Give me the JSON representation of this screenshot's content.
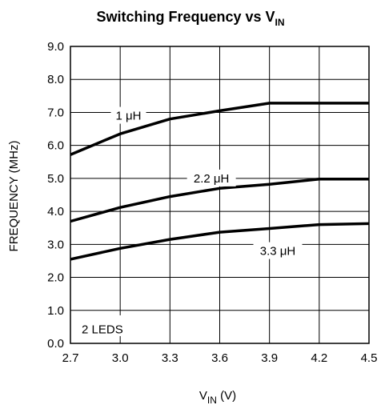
{
  "chart_data": {
    "type": "line",
    "title": {
      "main": "Switching Frequency vs V",
      "sub": "IN"
    },
    "xlabel": {
      "main": "V",
      "sub": "IN",
      "unit": " (V)"
    },
    "ylabel": "FREQUENCY (MHz)",
    "xlim": [
      2.7,
      4.5
    ],
    "ylim": [
      0.0,
      9.0
    ],
    "x_ticks": [
      "2.7",
      "3.0",
      "3.3",
      "3.6",
      "3.9",
      "4.2",
      "4.5"
    ],
    "y_ticks": [
      "0.0",
      "1.0",
      "2.0",
      "3.0",
      "4.0",
      "5.0",
      "6.0",
      "7.0",
      "8.0",
      "9.0"
    ],
    "grid": true,
    "annotation": "2 LEDS",
    "series": [
      {
        "name": "1 μH",
        "x": [
          2.7,
          3.0,
          3.3,
          3.6,
          3.9,
          4.2,
          4.5
        ],
        "y": [
          5.72,
          6.35,
          6.8,
          7.05,
          7.28,
          7.28,
          7.28
        ]
      },
      {
        "name": "2.2 μH",
        "x": [
          2.7,
          3.0,
          3.3,
          3.6,
          3.9,
          4.2,
          4.5
        ],
        "y": [
          3.7,
          4.12,
          4.45,
          4.7,
          4.82,
          4.98,
          4.98
        ]
      },
      {
        "name": "3.3 μH",
        "x": [
          2.7,
          3.0,
          3.3,
          3.6,
          3.9,
          4.2,
          4.5
        ],
        "y": [
          2.55,
          2.88,
          3.15,
          3.37,
          3.48,
          3.6,
          3.63
        ]
      }
    ],
    "colors": {
      "line": "#000000",
      "grid": "#000000",
      "background": "#ffffff"
    }
  }
}
